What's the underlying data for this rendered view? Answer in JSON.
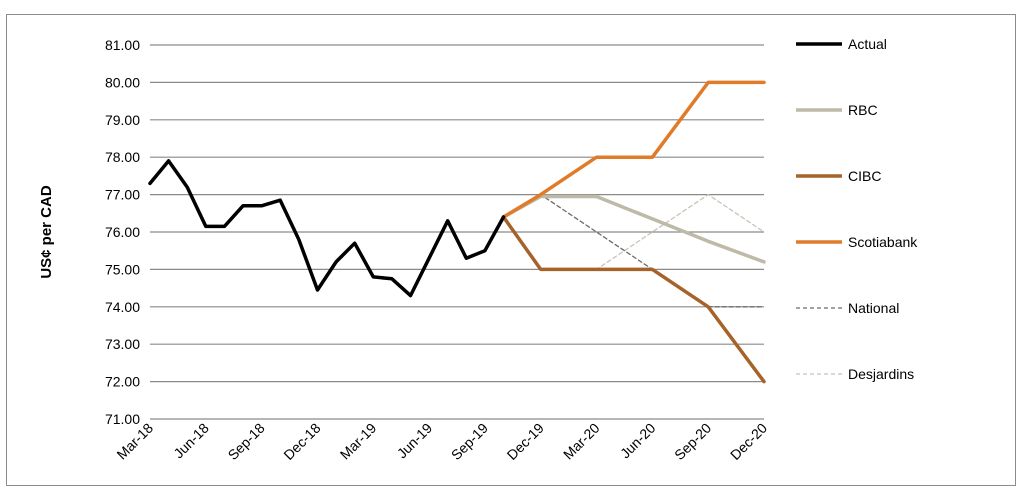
{
  "chart_data": {
    "type": "line",
    "title": "",
    "xlabel": "",
    "ylabel": "US¢ per CAD",
    "ylim": [
      71.0,
      81.0
    ],
    "y_ticks": [
      "71.00",
      "72.00",
      "73.00",
      "74.00",
      "75.00",
      "76.00",
      "77.00",
      "78.00",
      "79.00",
      "80.00",
      "81.00"
    ],
    "x_ticks": [
      "Mar-18",
      "Jun-18",
      "Sep-18",
      "Dec-18",
      "Mar-19",
      "Jun-19",
      "Sep-19",
      "Dec-19",
      "Mar-20",
      "Jun-20",
      "Sep-20",
      "Dec-20"
    ],
    "grid": "horizontal",
    "legend_position": "right",
    "series": [
      {
        "name": "Actual",
        "color": "#000000",
        "style": "solid",
        "x": [
          "Mar-18",
          "Apr-18",
          "May-18",
          "Jun-18",
          "Jul-18",
          "Aug-18",
          "Sep-18",
          "Oct-18",
          "Nov-18",
          "Dec-18",
          "Jan-19",
          "Feb-19",
          "Mar-19",
          "Apr-19",
          "May-19",
          "Jun-19",
          "Jul-19",
          "Aug-19",
          "Sep-19",
          "Oct-19"
        ],
        "values": [
          77.3,
          77.9,
          77.2,
          76.15,
          76.15,
          76.7,
          76.7,
          76.85,
          75.8,
          74.45,
          75.2,
          75.7,
          74.8,
          74.75,
          74.3,
          75.3,
          76.3,
          75.3,
          75.5,
          76.4
        ]
      },
      {
        "name": "RBC",
        "color": "#bdbaa8",
        "style": "solid",
        "x": [
          "Oct-19",
          "Dec-19",
          "Mar-20",
          "Jun-20",
          "Sep-20",
          "Dec-20"
        ],
        "values": [
          76.4,
          76.95,
          76.95,
          76.35,
          75.75,
          75.2
        ]
      },
      {
        "name": "CIBC",
        "color": "#a5632a",
        "style": "solid",
        "x": [
          "Oct-19",
          "Dec-19",
          "Mar-20",
          "Jun-20",
          "Sep-20",
          "Dec-20"
        ],
        "values": [
          76.4,
          75.0,
          75.0,
          75.0,
          74.0,
          72.0
        ]
      },
      {
        "name": "Scotiabank",
        "color": "#e07b2a",
        "style": "solid",
        "x": [
          "Oct-19",
          "Dec-19",
          "Mar-20",
          "Jun-20",
          "Sep-20",
          "Dec-20"
        ],
        "values": [
          76.4,
          77.0,
          78.0,
          78.0,
          80.0,
          80.0
        ]
      },
      {
        "name": "National",
        "color": "#6b6b6b",
        "style": "dashed",
        "x": [
          "Oct-19",
          "Dec-19",
          "Mar-20",
          "Jun-20",
          "Sep-20",
          "Dec-20"
        ],
        "values": [
          76.4,
          77.0,
          76.0,
          75.0,
          74.0,
          74.0
        ]
      },
      {
        "name": "Desjardins",
        "color": "#c8c4b4",
        "style": "dashed",
        "x": [
          "Oct-19",
          "Dec-19",
          "Mar-20",
          "Jun-20",
          "Sep-20",
          "Dec-20"
        ],
        "values": [
          76.4,
          75.0,
          75.0,
          76.0,
          77.0,
          76.0
        ]
      }
    ]
  }
}
